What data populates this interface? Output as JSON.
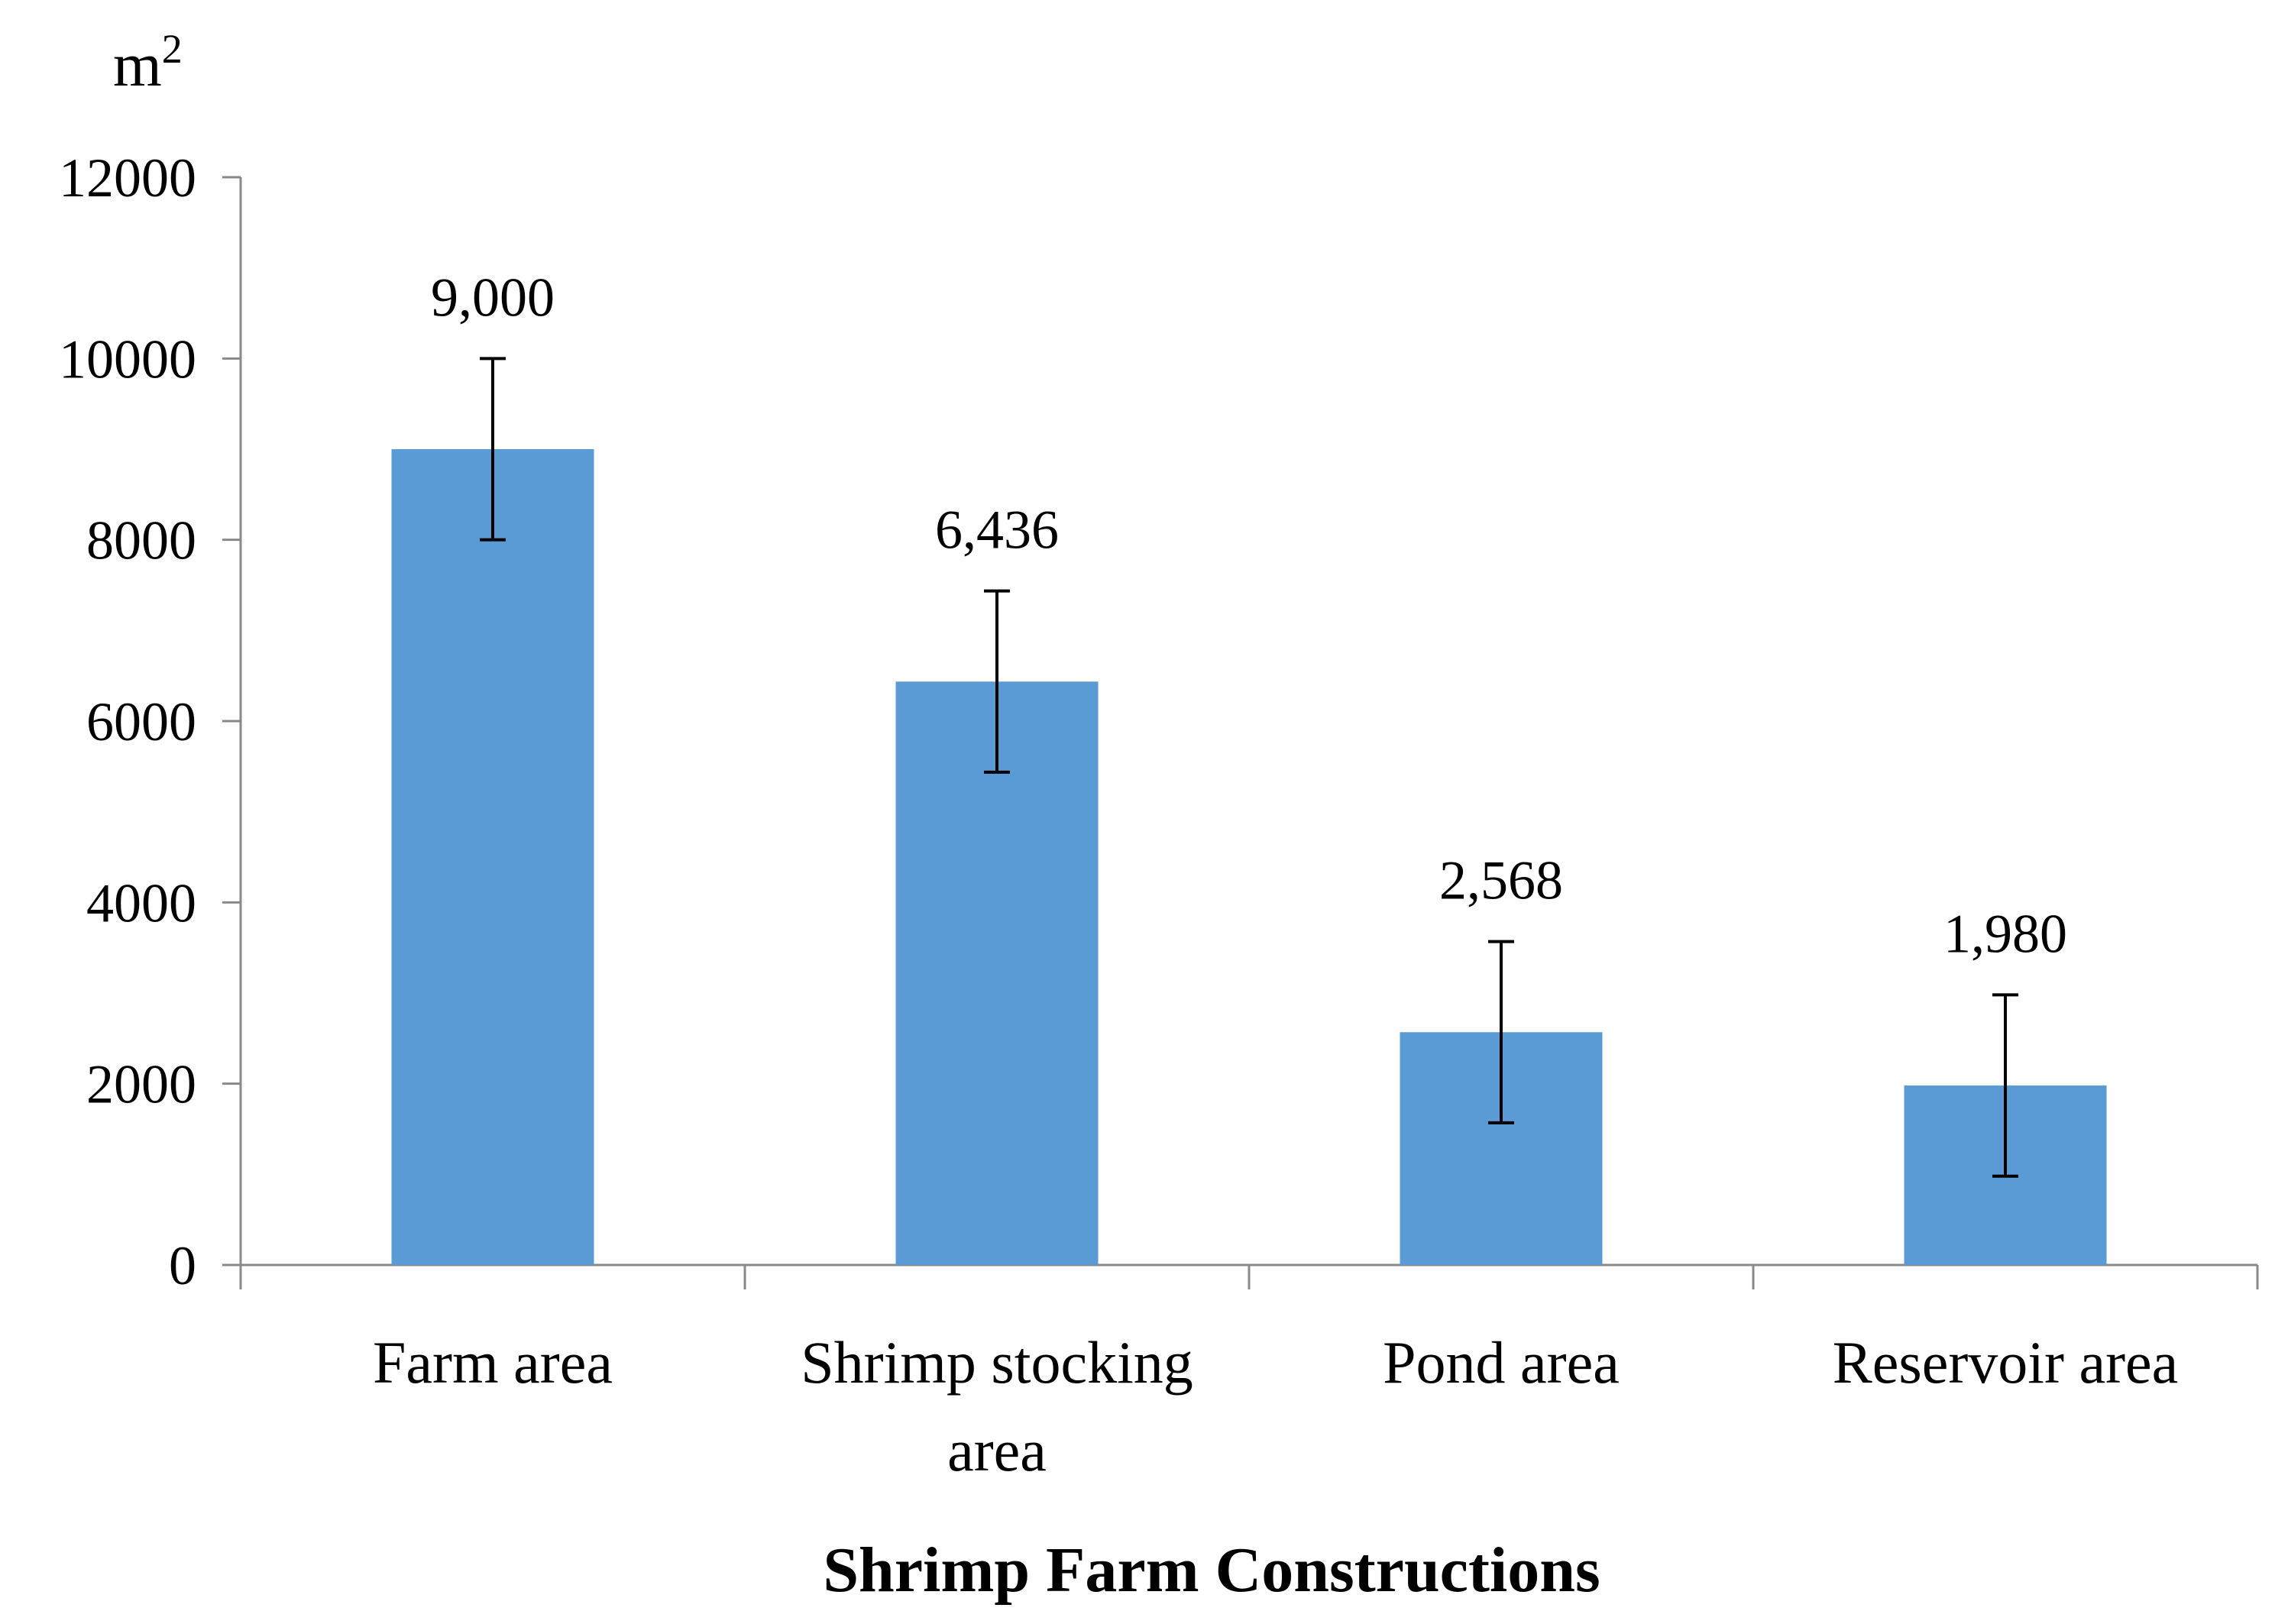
{
  "chart_data": {
    "type": "bar",
    "title": "",
    "xlabel": "Shrimp Farm Constructions",
    "ylabel": "m",
    "ylabel_superscript": "2",
    "ylim": [
      0,
      12000
    ],
    "yticks": [
      0,
      2000,
      4000,
      6000,
      8000,
      10000,
      12000
    ],
    "ytick_labels": [
      "0",
      "2000",
      "4000",
      "6000",
      "8000",
      "10000",
      "12000"
    ],
    "categories": [
      [
        "Farm area"
      ],
      [
        "Shrimp stocking",
        "area"
      ],
      [
        "Pond area"
      ],
      [
        "Reservoir area"
      ]
    ],
    "values": [
      9000,
      6436,
      2568,
      1980
    ],
    "error": [
      1000,
      1000,
      1000,
      1000
    ],
    "data_labels": [
      "9,000",
      "6,436",
      "2,568",
      "1,980"
    ],
    "grid": false,
    "legend": "none",
    "colors": {
      "bar": "#5b9bd5",
      "axis": "#898989",
      "error_bar": "#000000",
      "text": "#000000"
    }
  }
}
